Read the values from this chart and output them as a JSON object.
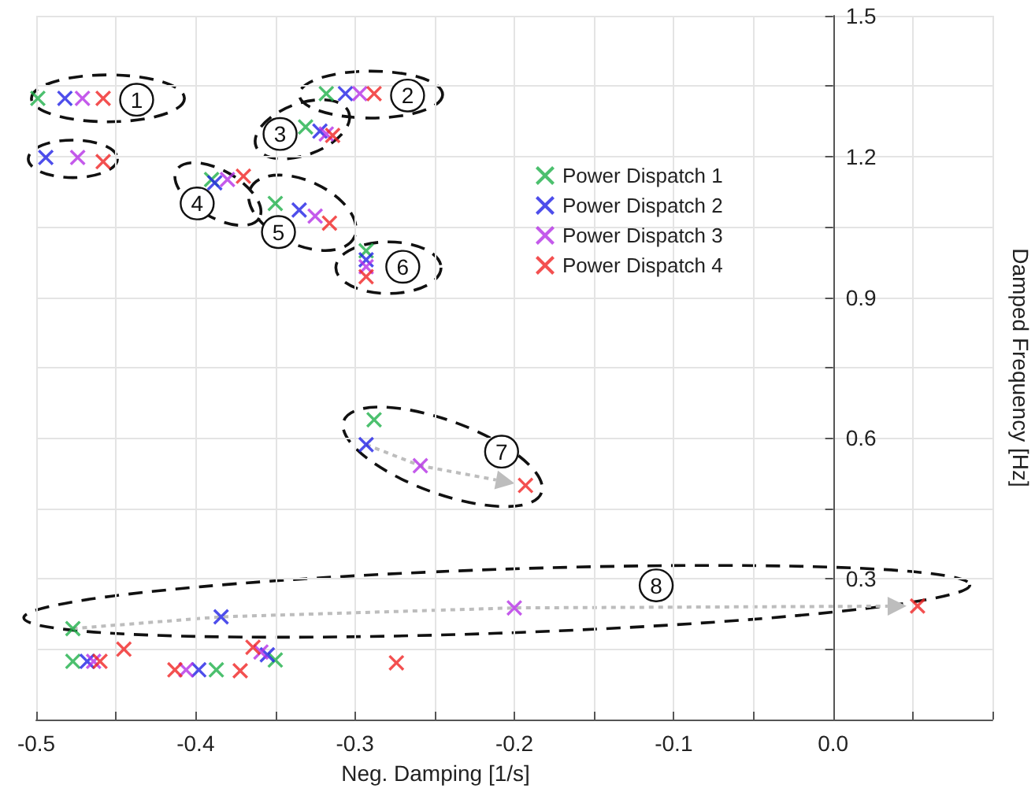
{
  "chart_data": {
    "type": "scatter",
    "xlabel": "Neg. Damping [1/s]",
    "ylabel": "Damped Frequency [Hz]",
    "xlim": [
      -0.5,
      0.1
    ],
    "ylim": [
      0,
      1.5
    ],
    "xticks": [
      -0.5,
      {
        "value": -0.45,
        "label": null
      },
      -0.4,
      {
        "value": -0.35,
        "label": null
      },
      -0.3,
      {
        "value": -0.25,
        "label": null
      },
      -0.2,
      {
        "value": -0.15,
        "label": null
      },
      -0.1,
      {
        "value": -0.05,
        "label": null
      },
      {
        "value": 0,
        "label": "0.0"
      },
      {
        "value": 0.05,
        "label": null
      },
      {
        "value": 0.1,
        "label": null
      }
    ],
    "yticks": [
      {
        "value": 0.15,
        "label": null
      },
      0.3,
      {
        "value": 0.45,
        "label": null
      },
      0.6,
      {
        "value": 0.75,
        "label": null
      },
      0.9,
      {
        "value": 1.05,
        "label": null
      },
      1.2,
      {
        "value": 1.35,
        "label": null
      },
      1.5
    ],
    "grid": true,
    "legend": "top right",
    "marker": "cross",
    "series": [
      {
        "name": "Power Dispatch 1",
        "color": "#1fb04a",
        "x": [
          -0.499,
          -0.318,
          -0.331,
          -0.39,
          -0.35,
          -0.293,
          -0.288,
          -0.477,
          -0.477,
          -0.387,
          -0.35
        ],
        "values": [
          1.324,
          1.334,
          1.263,
          1.151,
          1.1,
          0.999,
          0.639,
          0.194,
          0.124,
          0.106,
          0.127
        ]
      },
      {
        "name": "Power Dispatch 2",
        "color": "#2222e6",
        "x": [
          -0.482,
          -0.494,
          -0.306,
          -0.322,
          -0.388,
          -0.335,
          -0.293,
          -0.293,
          -0.384,
          -0.468,
          -0.398,
          null,
          -0.355,
          null
        ],
        "values": [
          1.324,
          1.198,
          1.334,
          1.254,
          1.144,
          1.086,
          0.98,
          0.586,
          0.219,
          0.124,
          0.106,
          null,
          0.138,
          null
        ]
      },
      {
        "name": "Power Dispatch 3",
        "color": "#b531e6",
        "x": [
          -0.471,
          -0.474,
          -0.297,
          -0.318,
          -0.38,
          -0.325,
          -0.293,
          -0.259,
          -0.2,
          -0.464,
          null,
          -0.406,
          null,
          -0.359
        ],
        "values": [
          1.324,
          1.198,
          1.334,
          1.248,
          1.151,
          1.073,
          0.965,
          0.541,
          0.238,
          0.124,
          null,
          0.106,
          null,
          0.144
        ]
      },
      {
        "name": "Power Dispatch 4",
        "color": "#f02424",
        "x": [
          -0.458,
          -0.458,
          -0.288,
          -0.314,
          -0.37,
          -0.316,
          -0.293,
          -0.193,
          0.053,
          -0.46,
          -0.445,
          -0.413,
          -0.372,
          -0.364,
          -0.274
        ],
        "values": [
          1.324,
          1.189,
          1.334,
          1.245,
          1.158,
          1.058,
          0.944,
          0.499,
          0.242,
          0.124,
          0.15,
          0.106,
          0.104,
          0.154,
          0.121
        ]
      }
    ],
    "annotations": [
      {
        "text": "1",
        "x": -0.437,
        "y": 1.321
      },
      {
        "text": "2",
        "x": -0.267,
        "y": 1.33
      },
      {
        "text": "3",
        "x": -0.347,
        "y": 1.248
      },
      {
        "text": "4",
        "x": -0.399,
        "y": 1.1
      },
      {
        "text": "5",
        "x": -0.348,
        "y": 1.039
      },
      {
        "text": "6",
        "x": -0.27,
        "y": 0.965
      },
      {
        "text": "7",
        "x": -0.208,
        "y": 0.571
      },
      {
        "text": "8",
        "x": -0.111,
        "y": 0.286
      }
    ]
  }
}
